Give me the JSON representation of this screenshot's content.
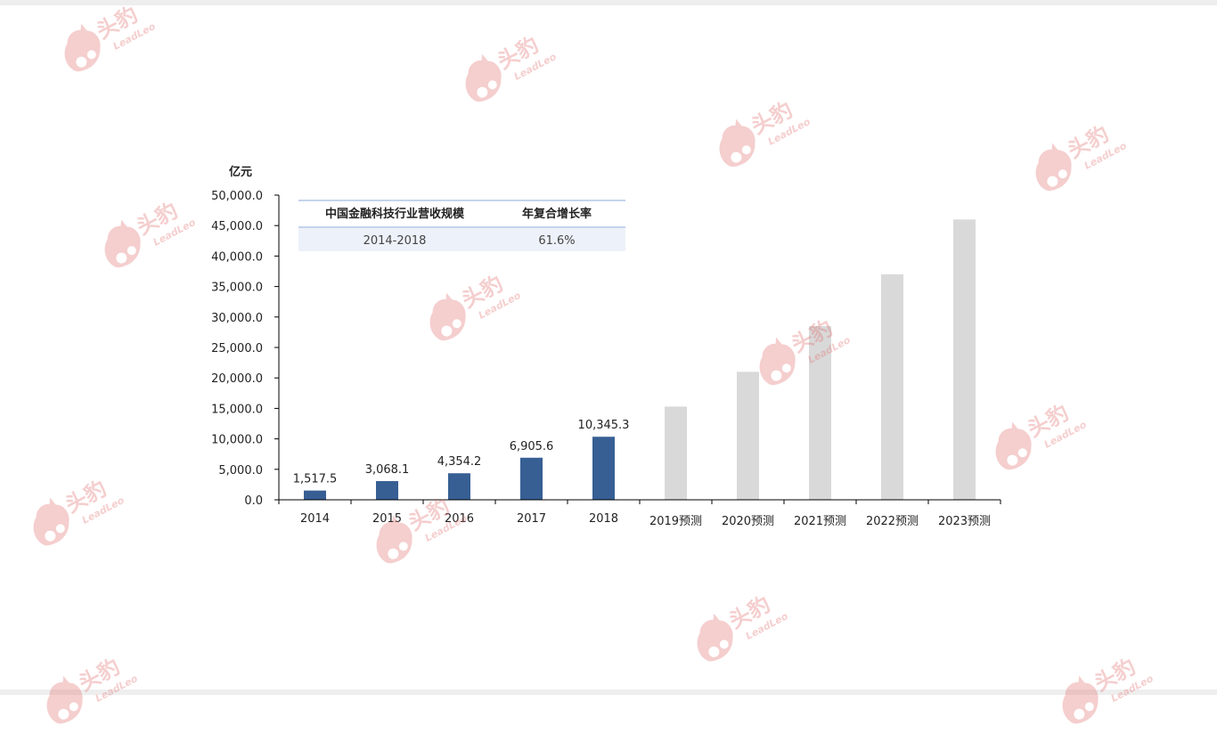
{
  "chart_data": {
    "type": "bar",
    "ylabel": "亿元",
    "ylim": [
      0,
      50000
    ],
    "yticks": [
      "0.0",
      "5,000.0",
      "10,000.0",
      "15,000.0",
      "20,000.0",
      "25,000.0",
      "30,000.0",
      "35,000.0",
      "40,000.0",
      "45,000.0",
      "50,000.0"
    ],
    "categories": [
      "2014",
      "2015",
      "2016",
      "2017",
      "2018",
      "2019预测",
      "2020预测",
      "2021预测",
      "2022预测",
      "2023预测"
    ],
    "values": [
      1517.5,
      3068.1,
      4354.2,
      6905.6,
      10345.3,
      15300,
      21000,
      28500,
      37000,
      46000
    ],
    "data_labels": [
      "1,517.5",
      "3,068.1",
      "4,354.2",
      "6,905.6",
      "10,345.3",
      "",
      "",
      "",
      "",
      ""
    ],
    "forecast": [
      false,
      false,
      false,
      false,
      false,
      true,
      true,
      true,
      true,
      true
    ],
    "colors": {
      "actual": "#375f94",
      "forecast": "#d9d9d9"
    },
    "grid": false
  },
  "inset_table": {
    "headers": [
      "中国金融科技行业营收规模",
      "年复合增长率"
    ],
    "row": [
      "2014-2018",
      "61.6%"
    ]
  },
  "watermark": {
    "cn": "头豹",
    "en": "LeadLeo"
  }
}
